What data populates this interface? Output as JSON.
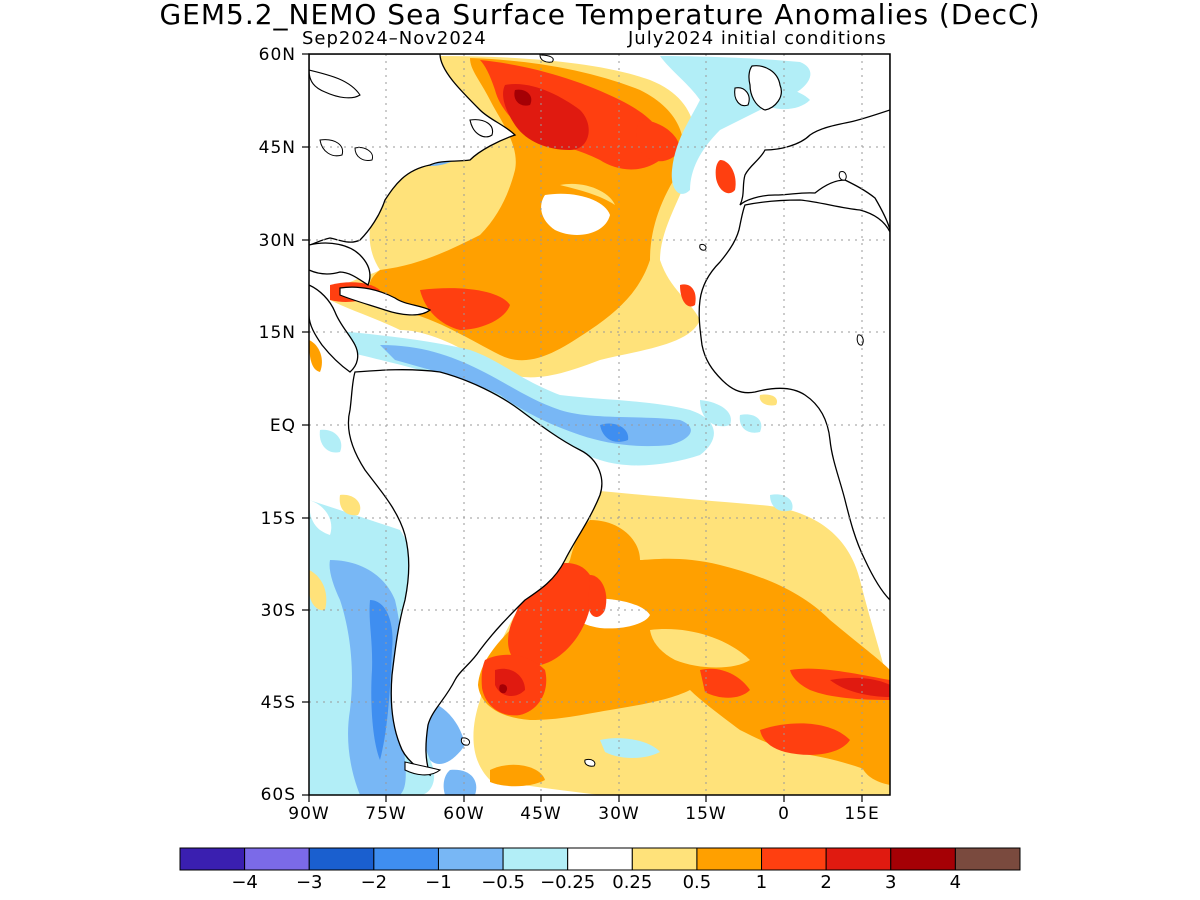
{
  "title": "GEM5.2_NEMO Sea Surface Temperature Anomalies (DecC)",
  "subtitle_left": "Sep2024–Nov2024",
  "subtitle_right": "July2024 initial conditions",
  "lat_labels": [
    "60N",
    "45N",
    "30N",
    "15N",
    "EQ",
    "15S",
    "30S",
    "45S",
    "60S"
  ],
  "lon_labels": [
    "90W",
    "75W",
    "60W",
    "45W",
    "30W",
    "15W",
    "0",
    "15E"
  ],
  "colorbar": {
    "colors": [
      "#3a1fb0",
      "#7b6ae8",
      "#1a5fcf",
      "#3f8ef0",
      "#78b7f5",
      "#b2eef7",
      "#ffffff",
      "#ffe27a",
      "#ffa000",
      "#ff3f10",
      "#e01a10",
      "#a50005",
      "#7a4a3e"
    ],
    "labels": [
      "−4",
      "−3",
      "−2",
      "−1",
      "−0.5",
      "−0.25",
      "0.25",
      "0.5",
      "1",
      "2",
      "3",
      "4"
    ]
  },
  "colors": {
    "ocean_neutral": "#ffffff",
    "land": "#ffffff",
    "coast": "#000000",
    "grid": "#9a9a9a"
  }
}
